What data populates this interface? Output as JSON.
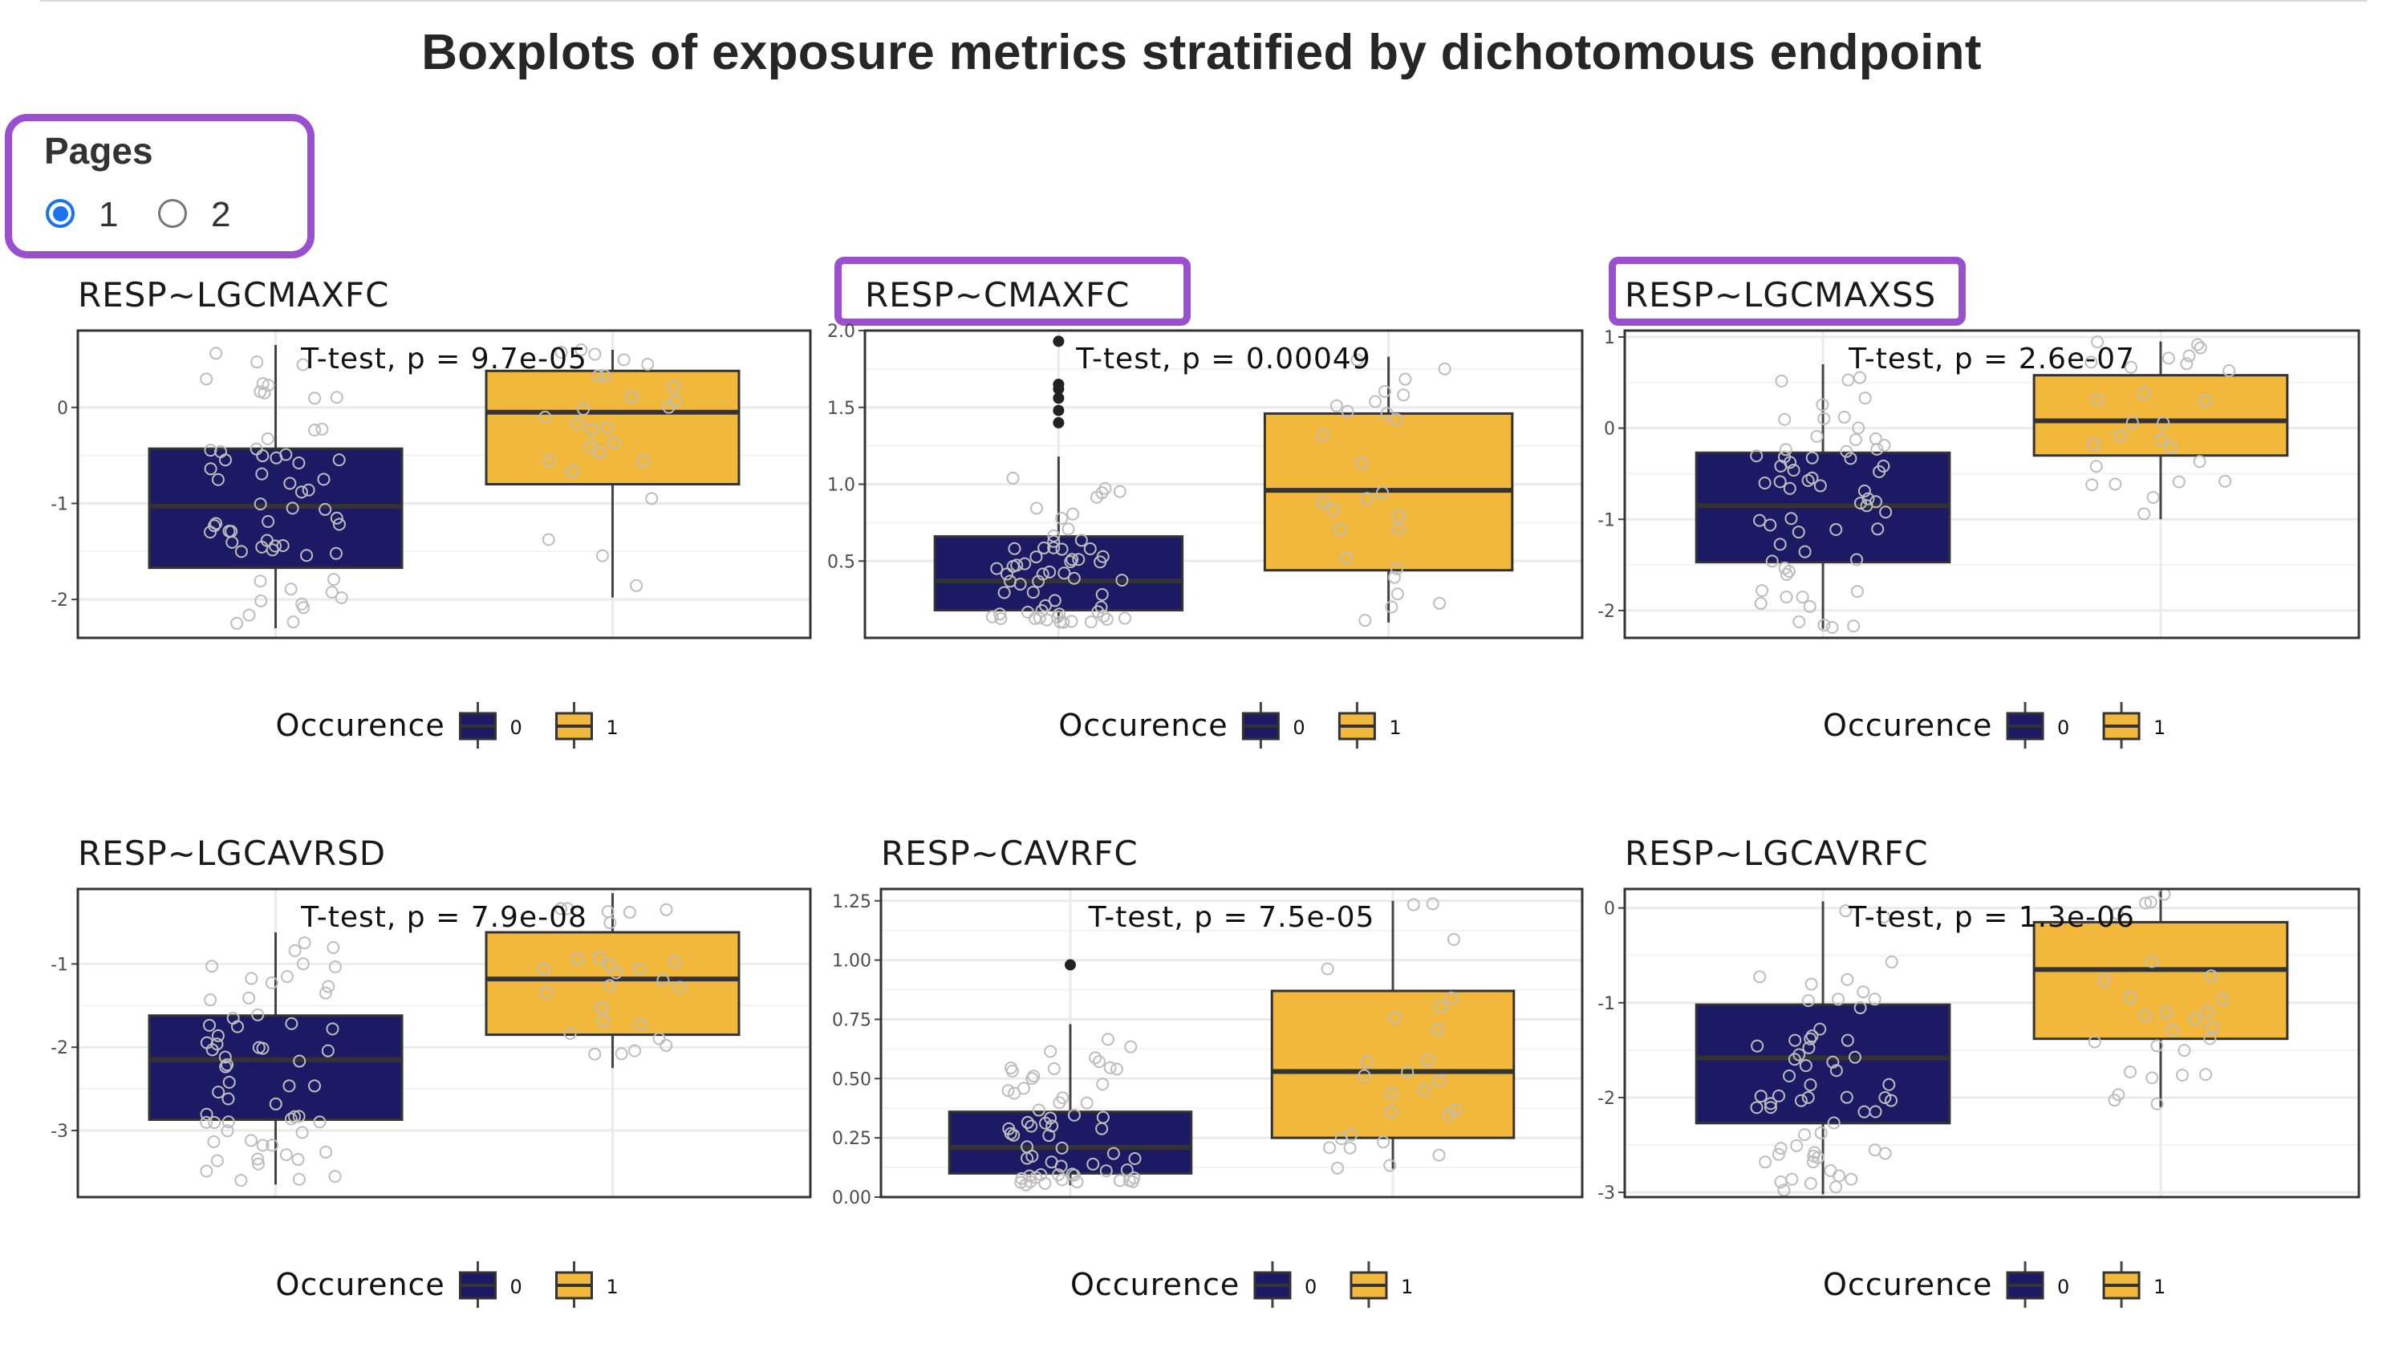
{
  "page_title": "Boxplots of exposure metrics stratified by dichotomous endpoint",
  "pages": {
    "label": "Pages",
    "options": [
      "1",
      "2"
    ],
    "selected": "1"
  },
  "colors": {
    "group0": "#1c1a64",
    "group1": "#f2b83c",
    "highlight": "#9a4fd0",
    "grid": "#ebebeb",
    "point": "#bdbdbd"
  },
  "legend": {
    "title": "Occurence",
    "labels": [
      "0",
      "1"
    ]
  },
  "chart_data": [
    {
      "type": "box",
      "title": "RESP~LGCMAXFC",
      "annotation": "T-test, p = 9.7e-05",
      "ylim": [
        -2.4,
        0.8
      ],
      "yticks": [
        -2,
        -1,
        0
      ],
      "ytick_labels": [
        "-2",
        "-1",
        "0"
      ],
      "groups": [
        {
          "name": "0",
          "min": -2.3,
          "q1": -1.67,
          "median": -1.03,
          "q3": -0.43,
          "max": 0.65,
          "outliers": []
        },
        {
          "name": "1",
          "min": -1.98,
          "q1": -0.8,
          "median": -0.05,
          "q3": 0.38,
          "max": 0.6,
          "outliers": []
        }
      ]
    },
    {
      "type": "box",
      "title": "RESP~CMAXFC",
      "annotation": "T-test, p = 0.00049",
      "ylim": [
        0.0,
        2.0
      ],
      "yticks": [
        0.5,
        1.0,
        1.5,
        2.0
      ],
      "ytick_labels": [
        "0.5",
        "1.0",
        "1.5",
        "2.0"
      ],
      "groups": [
        {
          "name": "0",
          "min": 0.1,
          "q1": 0.18,
          "median": 0.37,
          "q3": 0.66,
          "max": 1.18,
          "outliers": [
            1.4,
            1.48,
            1.56,
            1.62,
            1.65,
            1.93
          ]
        },
        {
          "name": "1",
          "min": 0.1,
          "q1": 0.44,
          "median": 0.96,
          "q3": 1.46,
          "max": 1.83,
          "outliers": []
        }
      ]
    },
    {
      "type": "box",
      "title": "RESP~LGCMAXSS",
      "annotation": "T-test, p = 2.6e-07",
      "ylim": [
        -2.3,
        1.07
      ],
      "yticks": [
        -2,
        -1,
        0,
        1
      ],
      "ytick_labels": [
        "-2",
        "-1",
        "0",
        "1"
      ],
      "groups": [
        {
          "name": "0",
          "min": -2.2,
          "q1": -1.47,
          "median": -0.85,
          "q3": -0.27,
          "max": 0.7,
          "outliers": []
        },
        {
          "name": "1",
          "min": -1.0,
          "q1": -0.3,
          "median": 0.08,
          "q3": 0.58,
          "max": 0.95,
          "outliers": []
        }
      ]
    },
    {
      "type": "box",
      "title": "RESP~LGCAVRSD",
      "annotation": "T-test, p = 7.9e-08",
      "ylim": [
        -3.8,
        -0.1
      ],
      "yticks": [
        -3,
        -2,
        -1
      ],
      "ytick_labels": [
        "-3",
        "-2",
        "-1"
      ],
      "groups": [
        {
          "name": "0",
          "min": -3.65,
          "q1": -2.87,
          "median": -2.15,
          "q3": -1.62,
          "max": -0.62,
          "outliers": []
        },
        {
          "name": "1",
          "min": -2.25,
          "q1": -1.85,
          "median": -1.18,
          "q3": -0.62,
          "max": -0.15,
          "outliers": []
        }
      ]
    },
    {
      "type": "box",
      "title": "RESP~CAVRFC",
      "annotation": "T-test, p = 7.5e-05",
      "ylim": [
        0.0,
        1.3
      ],
      "yticks": [
        0.0,
        0.25,
        0.5,
        0.75,
        1.0,
        1.25
      ],
      "ytick_labels": [
        "0.00",
        "0.25",
        "0.50",
        "0.75",
        "1.00",
        "1.25"
      ],
      "groups": [
        {
          "name": "0",
          "min": 0.05,
          "q1": 0.1,
          "median": 0.21,
          "q3": 0.36,
          "max": 0.73,
          "outliers": [
            0.98
          ]
        },
        {
          "name": "1",
          "min": 0.12,
          "q1": 0.25,
          "median": 0.53,
          "q3": 0.87,
          "max": 1.25,
          "outliers": []
        }
      ]
    },
    {
      "type": "box",
      "title": "RESP~LGCAVRFC",
      "annotation": "T-test, p = 1.3e-06",
      "ylim": [
        -3.05,
        0.2
      ],
      "yticks": [
        -3,
        -2,
        -1,
        0
      ],
      "ytick_labels": [
        "-3",
        "-2",
        "-1",
        "0"
      ],
      "groups": [
        {
          "name": "0",
          "min": -3.02,
          "q1": -2.27,
          "median": -1.58,
          "q3": -1.02,
          "max": 0.07,
          "outliers": []
        },
        {
          "name": "1",
          "min": -2.1,
          "q1": -1.38,
          "median": -0.65,
          "q3": -0.15,
          "max": 0.2,
          "outliers": []
        }
      ]
    }
  ]
}
